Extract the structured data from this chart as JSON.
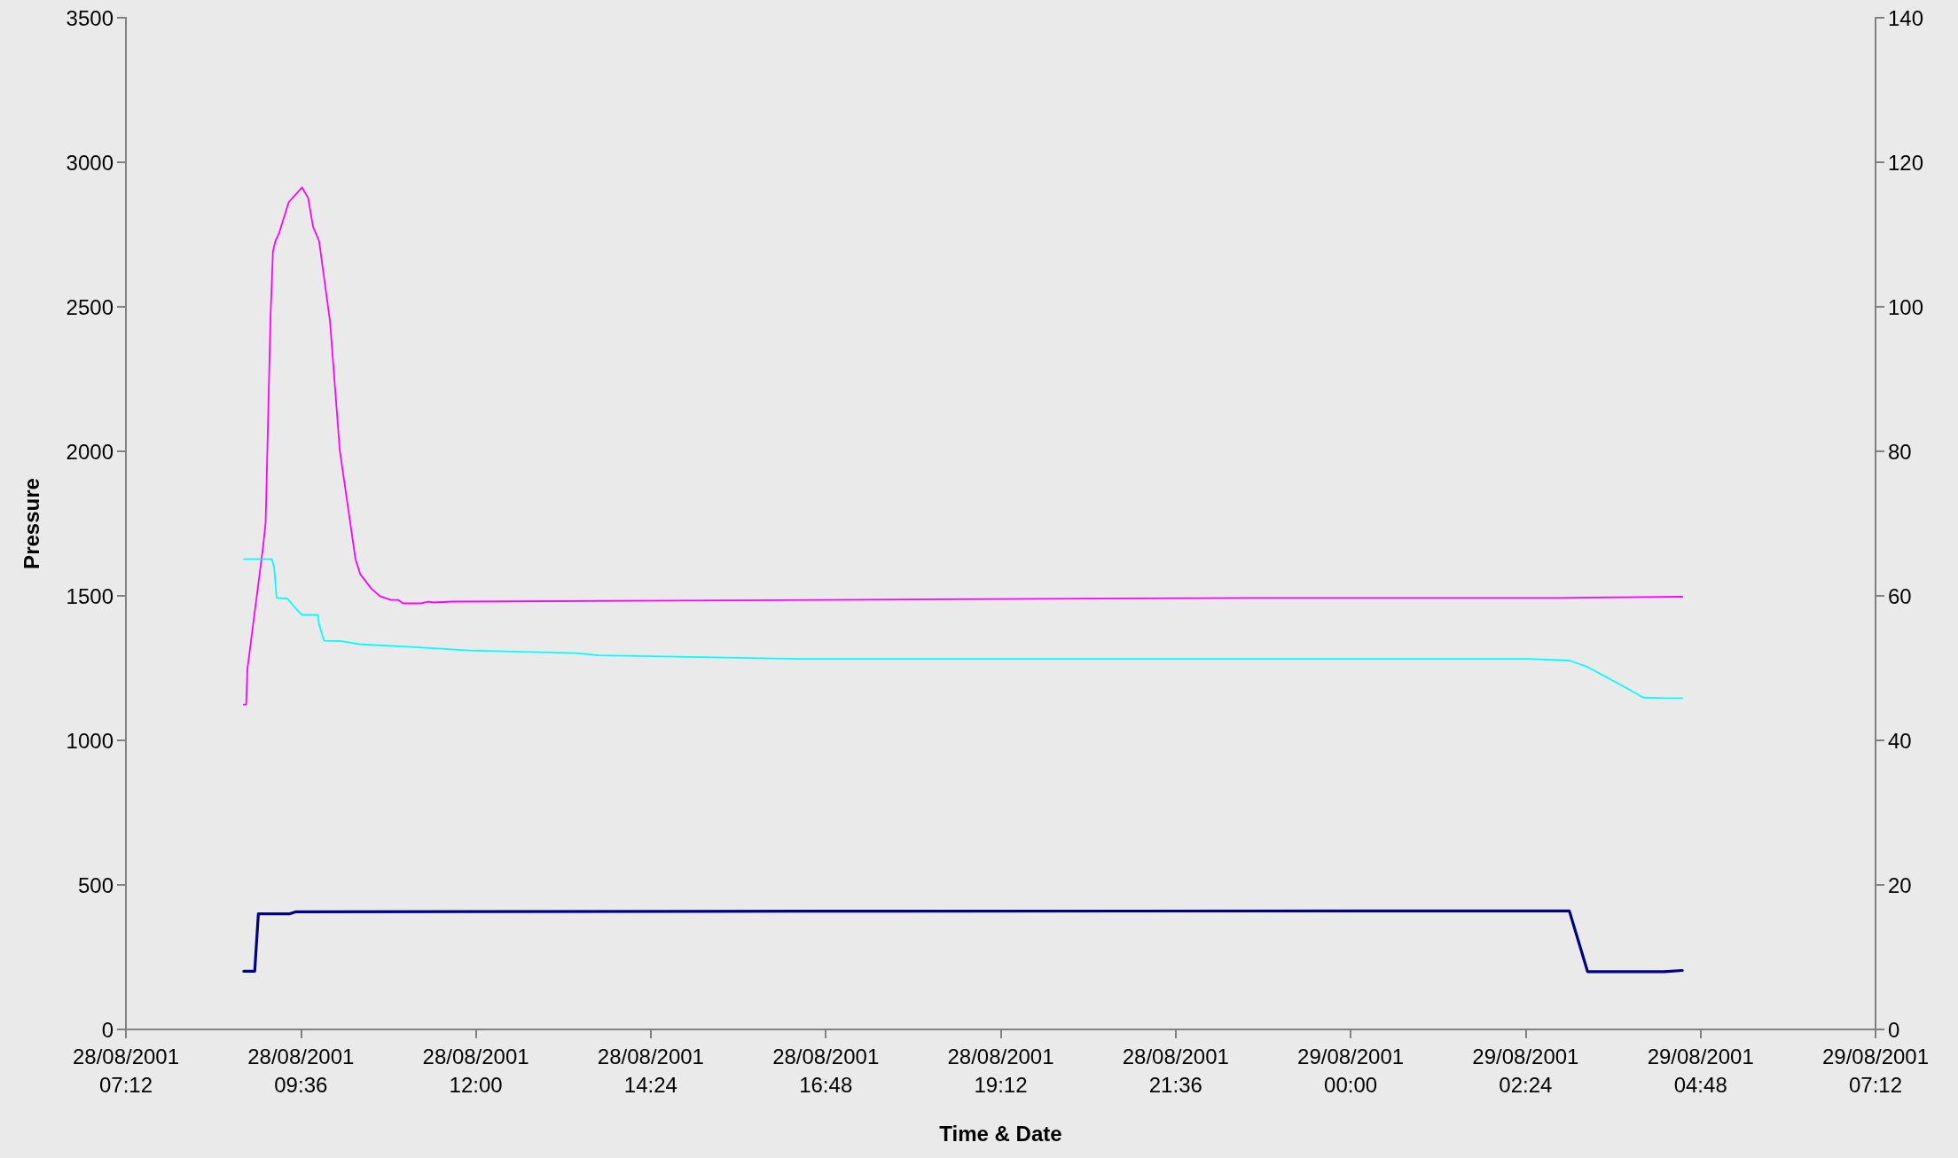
{
  "chart_data": {
    "type": "line",
    "xlabel": "Time & Date",
    "ylabel": "Pressure",
    "xlim": [
      "2001-08-28T07:12",
      "2001-08-29T07:12"
    ],
    "xticks": [
      {
        "value": "2001-08-28T07:12",
        "label": "28/08/2001\n07:12"
      },
      {
        "value": "2001-08-28T09:36",
        "label": "28/08/2001\n09:36"
      },
      {
        "value": "2001-08-28T12:00",
        "label": "28/08/2001\n12:00"
      },
      {
        "value": "2001-08-28T14:24",
        "label": "28/08/2001\n14:24"
      },
      {
        "value": "2001-08-28T16:48",
        "label": "28/08/2001\n16:48"
      },
      {
        "value": "2001-08-28T19:12",
        "label": "28/08/2001\n19:12"
      },
      {
        "value": "2001-08-28T21:36",
        "label": "28/08/2001\n21:36"
      },
      {
        "value": "2001-08-29T00:00",
        "label": "29/08/2001\n00:00"
      },
      {
        "value": "2001-08-29T02:24",
        "label": "29/08/2001\n02:24"
      },
      {
        "value": "2001-08-29T04:48",
        "label": "29/08/2001\n04:48"
      },
      {
        "value": "2001-08-29T07:12",
        "label": "29/08/2001\n07:12"
      }
    ],
    "ylim": [
      0,
      3500
    ],
    "yticks": [
      0,
      500,
      1000,
      1500,
      2000,
      2500,
      3000,
      3500
    ],
    "y2lim": [
      0,
      140
    ],
    "y2ticks": [
      0,
      20,
      40,
      60,
      80,
      100,
      120,
      140
    ],
    "grid": false,
    "marker": "none",
    "line_style": "solid",
    "series": [
      {
        "color": "#ff00ff",
        "x": [
          "2001-08-28T08:49",
          "2001-08-28T08:51",
          "2001-08-28T08:52",
          "2001-08-28T09:05",
          "2001-08-28T09:07",
          "2001-08-28T09:11",
          "2001-08-28T09:13",
          "2001-08-28T09:15",
          "2001-08-28T09:18",
          "2001-08-28T09:26",
          "2001-08-28T09:37",
          "2001-08-28T09:42",
          "2001-08-28T09:46",
          "2001-08-28T09:51",
          "2001-08-28T10:00",
          "2001-08-28T10:08",
          "2001-08-28T10:21",
          "2001-08-28T10:25",
          "2001-08-28T10:34",
          "2001-08-28T10:41",
          "2001-08-28T10:50",
          "2001-08-28T10:56",
          "2001-08-28T11:00",
          "2001-08-28T11:15",
          "2001-08-28T11:21",
          "2001-08-28T11:25",
          "2001-08-28T11:40",
          "2001-08-28T16:05",
          "2001-08-28T22:36",
          "2001-08-29T02:53",
          "2001-08-29T04:33"
        ],
        "values": [
          1124,
          1124,
          1247,
          1673,
          1756,
          2462,
          2691,
          2727,
          2754,
          2862,
          2913,
          2876,
          2777,
          2727,
          2449,
          2004,
          1625,
          1574,
          1525,
          1499,
          1486,
          1486,
          1474,
          1474,
          1480,
          1477,
          1480,
          1485,
          1493,
          1493,
          1497
        ]
      },
      {
        "color": "#00ffff",
        "x": [
          "2001-08-28T08:49",
          "2001-08-28T09:12",
          "2001-08-28T09:14",
          "2001-08-28T09:16",
          "2001-08-28T09:25",
          "2001-08-28T09:32",
          "2001-08-28T09:37",
          "2001-08-28T09:50",
          "2001-08-28T09:51",
          "2001-08-28T09:55",
          "2001-08-28T10:09",
          "2001-08-28T10:26",
          "2001-08-28T11:07",
          "2001-08-28T11:55",
          "2001-08-28T13:23",
          "2001-08-28T13:41",
          "2001-08-28T16:26",
          "2001-08-29T02:27",
          "2001-08-29T03:00",
          "2001-08-29T03:15",
          "2001-08-29T03:44",
          "2001-08-29T04:01",
          "2001-08-29T04:18",
          "2001-08-29T04:33"
        ],
        "values": [
          1627,
          1627,
          1600,
          1493,
          1490,
          1455,
          1434,
          1434,
          1400,
          1345,
          1343,
          1332,
          1323,
          1311,
          1302,
          1294,
          1282,
          1282,
          1276,
          1254,
          1188,
          1148,
          1146,
          1146
        ]
      },
      {
        "color": "#000080",
        "x": [
          "2001-08-28T08:49",
          "2001-08-28T08:58",
          "2001-08-28T09:01",
          "2001-08-28T09:27",
          "2001-08-28T09:32",
          "2001-08-28T16:30",
          "2001-08-29T00:56",
          "2001-08-29T03:00",
          "2001-08-29T03:15",
          "2001-08-29T04:18",
          "2001-08-29T04:33"
        ],
        "values": [
          201,
          201,
          400,
          400,
          407,
          409,
          410,
          410,
          200,
          200,
          204
        ]
      }
    ]
  }
}
